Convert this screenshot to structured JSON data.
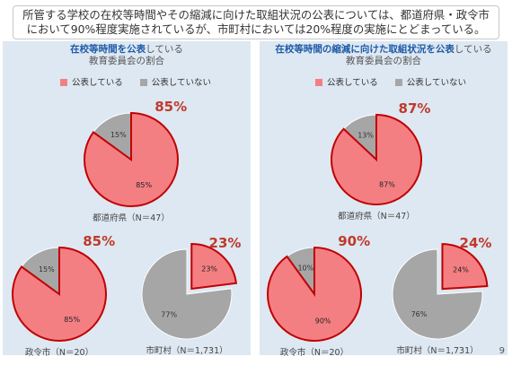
{
  "header": {
    "line1": "所管する学校の在校等時間やその縮減に向けた取組状況の公表については、都道府県・政令市",
    "line2": "において90%程度実施されているが、市町村においては20%程度の実施にとどまっている。"
  },
  "colors": {
    "published": "#f47f83",
    "published_border": "#c00000",
    "not_published": "#a6a6a6",
    "big_label": "#c0392b"
  },
  "panels": [
    {
      "title_highlight": "在校等時間を公表",
      "title_rest": "している",
      "title_line2": "教育委員会の割合",
      "legend": [
        "公表している",
        "公表していない"
      ]
    },
    {
      "title_highlight": "在校等時間の縮減に向けた取組状況を公表",
      "title_rest": "している",
      "title_line2": "教育委員会の割合",
      "legend": [
        "公表している",
        "公表していない"
      ]
    }
  ],
  "chart_data": [
    {
      "type": "pie",
      "panel": 0,
      "caption": "都道府県（N＝47）",
      "big_label": "85%",
      "slices": [
        {
          "label": "公表している",
          "value": 85,
          "text": "85%"
        },
        {
          "label": "公表していない",
          "value": 15,
          "text": "15%"
        }
      ]
    },
    {
      "type": "pie",
      "panel": 0,
      "caption": "政令市（N＝20）",
      "big_label": "85%",
      "slices": [
        {
          "label": "公表している",
          "value": 85,
          "text": "85%"
        },
        {
          "label": "公表していない",
          "value": 15,
          "text": "15%"
        }
      ]
    },
    {
      "type": "pie",
      "panel": 0,
      "caption": "市町村（N＝1,731）",
      "big_label": "23%",
      "slices": [
        {
          "label": "公表している",
          "value": 23,
          "text": "23%"
        },
        {
          "label": "公表していない",
          "value": 77,
          "text": "77%"
        }
      ]
    },
    {
      "type": "pie",
      "panel": 1,
      "caption": "都道府県（N＝47）",
      "big_label": "87%",
      "slices": [
        {
          "label": "公表している",
          "value": 87,
          "text": "87%"
        },
        {
          "label": "公表していない",
          "value": 13,
          "text": "13%"
        }
      ]
    },
    {
      "type": "pie",
      "panel": 1,
      "caption": "政令市（N＝20）",
      "big_label": "90%",
      "slices": [
        {
          "label": "公表している",
          "value": 90,
          "text": "90%"
        },
        {
          "label": "公表していない",
          "value": 10,
          "text": "10%"
        }
      ]
    },
    {
      "type": "pie",
      "panel": 1,
      "caption": "市町村（N＝1,731）",
      "big_label": "24%",
      "slices": [
        {
          "label": "公表している",
          "value": 24,
          "text": "24%"
        },
        {
          "label": "公表していない",
          "value": 76,
          "text": "76%"
        }
      ]
    }
  ],
  "page_number": "9"
}
